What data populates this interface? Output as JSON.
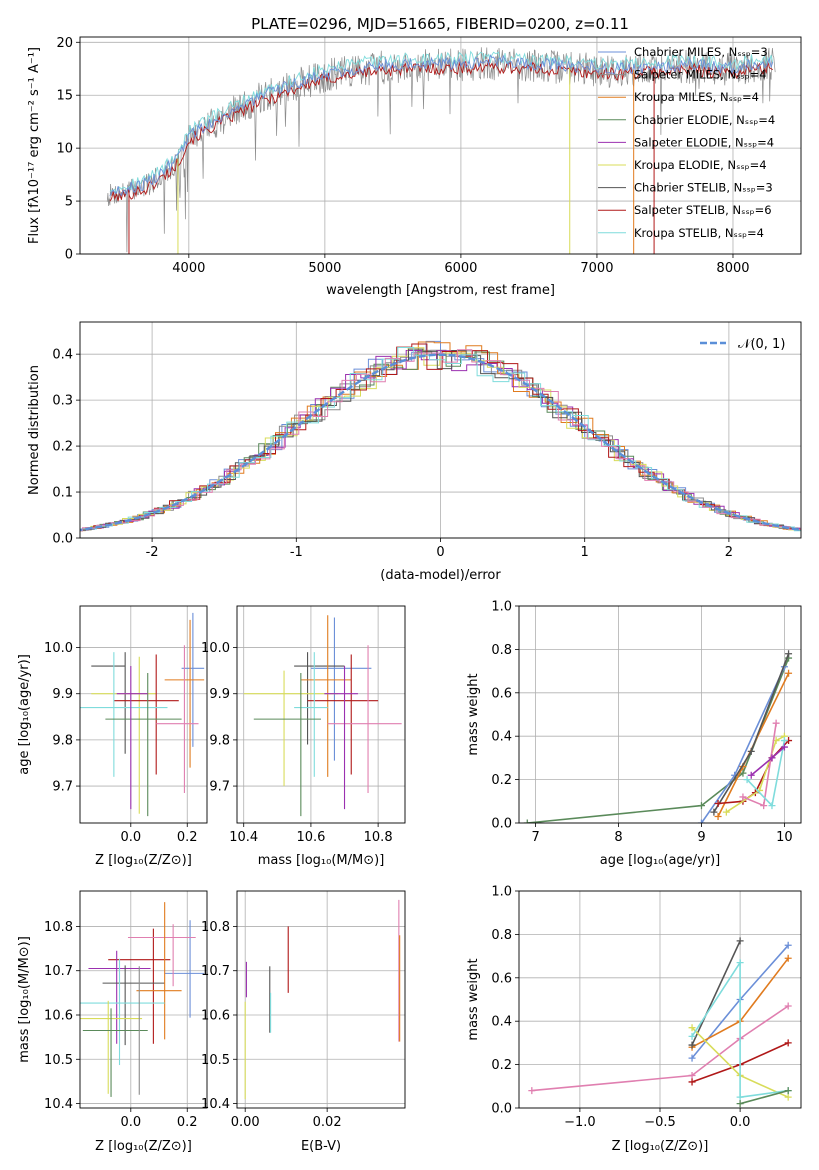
{
  "title": "PLATE=0296, MJD=51665, FIBERID=0200, z=0.11",
  "colors": {
    "Chabrier MILES": "#6b8fd8",
    "Salpeter MILES": "#8c8c8c",
    "Kroupa MILES": "#e07b1f",
    "Chabrier ELODIE": "#5a8a5a",
    "Salpeter ELODIE": "#9b30b0",
    "Kroupa ELODIE": "#d8dc5a",
    "Chabrier STELIB": "#555555",
    "Salpeter STELIB": "#b01818",
    "Kroupa STELIB": "#7fdcdc",
    "pink": "#e07fb0",
    "gauss": "#5b8fd8"
  },
  "chart_data": [
    {
      "type": "line",
      "title": "PLATE=0296, MJD=51665, FIBERID=0200, z=0.11",
      "xlabel": "wavelength [Angstrom, rest frame]",
      "ylabel": "Flux [fλ10⁻¹⁷ erg cm⁻² s⁻¹ A⁻¹]",
      "xlim": [
        3200,
        8500
      ],
      "ylim": [
        0,
        20.5
      ],
      "xticks": [
        4000,
        5000,
        6000,
        7000,
        8000
      ],
      "yticks": [
        0,
        5,
        10,
        15,
        20
      ],
      "legend": "top-right",
      "series": [
        {
          "name": "Chabrier MILES, Nₛₛₚ=3",
          "color": "#6b8fd8"
        },
        {
          "name": "Salpeter MILES, Nₛₛₚ=4",
          "color": "#8c8c8c"
        },
        {
          "name": "Kroupa MILES, Nₛₛₚ=4",
          "color": "#e07b1f"
        },
        {
          "name": "Chabrier ELODIE, Nₛₛₚ=4",
          "color": "#5a8a5a"
        },
        {
          "name": "Salpeter ELODIE, Nₛₛₚ=4",
          "color": "#9b30b0"
        },
        {
          "name": "Kroupa ELODIE, Nₛₛₚ=4",
          "color": "#d8dc5a"
        },
        {
          "name": "Chabrier STELIB, Nₛₛₚ=3",
          "color": "#555555"
        },
        {
          "name": "Salpeter STELIB, Nₛₛₚ=6",
          "color": "#b01818"
        },
        {
          "name": "Kroupa STELIB, Nₛₛₚ=4",
          "color": "#7fdcdc"
        }
      ],
      "continuum": {
        "x": [
          3400,
          3500,
          3700,
          3900,
          4000,
          4200,
          4500,
          4800,
          5000,
          5300,
          5600,
          5900,
          6200,
          6500,
          6800,
          7100,
          7400,
          7700,
          8000,
          8300
        ],
        "y": [
          5.5,
          5.8,
          6.5,
          8.5,
          11.0,
          12.5,
          14.5,
          16.0,
          16.8,
          17.5,
          17.8,
          17.8,
          18.0,
          17.8,
          17.6,
          17.3,
          17.5,
          17.7,
          17.4,
          18.0
        ]
      }
    },
    {
      "type": "histogram",
      "xlabel": "(data-model)/error",
      "ylabel": "Normed distribution",
      "xlim": [
        -2.5,
        2.5
      ],
      "ylim": [
        0,
        0.47
      ],
      "xticks": [
        -2,
        -1,
        0,
        1,
        2
      ],
      "yticks": [
        0.0,
        0.1,
        0.2,
        0.3,
        0.4
      ],
      "legend": "top-right",
      "legend_label": "𝒩(0, 1)"
    },
    {
      "type": "scatter",
      "xlabel": "Z [log₁₀(Z/Z⊙)]",
      "ylabel": "age  [log₁₀(age/yr)]",
      "xlim": [
        -0.18,
        0.27
      ],
      "ylim": [
        9.62,
        10.09
      ],
      "xticks": [
        0.0,
        0.2
      ],
      "yticks": [
        9.7,
        9.8,
        9.9,
        10.0
      ]
    },
    {
      "type": "scatter",
      "xlabel": "mass [log₁₀(M/M⊙)]",
      "xlim": [
        10.38,
        10.88
      ],
      "ylim": [
        9.62,
        10.09
      ],
      "xticks": [
        10.4,
        10.6,
        10.8
      ],
      "yticks": [
        9.7,
        9.8,
        9.9,
        10.0
      ]
    },
    {
      "type": "line",
      "xlabel": "age  [log₁₀(age/yr)]",
      "ylabel": "mass weight",
      "xlim": [
        6.8,
        10.2
      ],
      "ylim": [
        0,
        1.0
      ],
      "xticks": [
        7,
        8,
        9,
        10
      ],
      "yticks": [
        0.0,
        0.2,
        0.4,
        0.6,
        0.8,
        1.0
      ]
    },
    {
      "type": "scatter",
      "xlabel": "Z [log₁₀(Z/Z⊙)]",
      "ylabel": "mass [log₁₀(M/M⊙)]",
      "xlim": [
        -0.18,
        0.27
      ],
      "ylim": [
        10.39,
        10.88
      ],
      "xticks": [
        0.0,
        0.2
      ],
      "yticks": [
        10.4,
        10.5,
        10.6,
        10.7,
        10.8
      ]
    },
    {
      "type": "scatter",
      "xlabel": "E(B-V)",
      "xlim": [
        -0.002,
        0.039
      ],
      "ylim": [
        10.39,
        10.88
      ],
      "xticks": [
        0.0,
        0.02
      ],
      "yticks": [
        10.4,
        10.5,
        10.6,
        10.7,
        10.8
      ]
    },
    {
      "type": "line",
      "xlabel": "Z [log₁₀(Z/Z⊙)]",
      "ylabel": "mass weight",
      "xlim": [
        -1.38,
        0.38
      ],
      "ylim": [
        0,
        1.0
      ],
      "xticks": [
        -1.0,
        -0.5,
        0.0
      ],
      "yticks": [
        0.0,
        0.2,
        0.4,
        0.6,
        0.8,
        1.0
      ]
    }
  ]
}
